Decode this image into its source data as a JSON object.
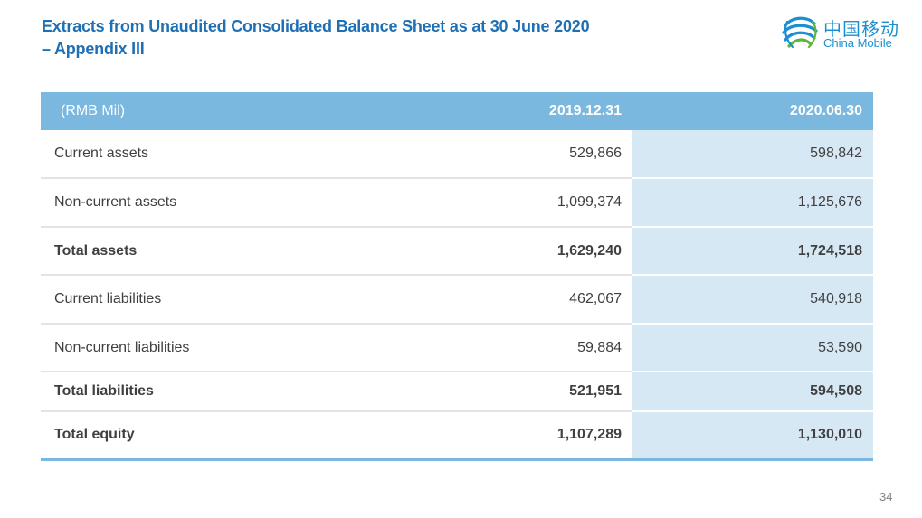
{
  "slide": {
    "title_line1": "Extracts from Unaudited Consolidated Balance Sheet as at 30 June 2020",
    "title_line2": "– Appendix III",
    "page_number": "34"
  },
  "logo": {
    "chinese_text": "中国移动",
    "english_text": "China Mobile",
    "icon": "china-mobile-swirl-icon",
    "color": "#1b8fd0"
  },
  "table": {
    "header": {
      "unit_label": "(RMB Mil)",
      "col1": "2019.12.31",
      "col2": "2020.06.30"
    },
    "rows": [
      {
        "label": "Current assets",
        "v2019": "529,866",
        "v2020": "598,842",
        "bold": false
      },
      {
        "label": "Non-current assets",
        "v2019": "1,099,374",
        "v2020": "1,125,676",
        "bold": false
      },
      {
        "label": "Total assets",
        "v2019": "1,629,240",
        "v2020": "1,724,518",
        "bold": true
      },
      {
        "label": "Current liabilities",
        "v2019": "462,067",
        "v2020": "540,918",
        "bold": false
      },
      {
        "label": "Non-current liabilities",
        "v2019": "59,884",
        "v2020": "53,590",
        "bold": false
      },
      {
        "label": "Total liabilities",
        "v2019": "521,951",
        "v2020": "594,508",
        "bold": true
      },
      {
        "label": "Total equity",
        "v2019": "1,107,289",
        "v2020": "1,130,010",
        "bold": true
      }
    ]
  },
  "colors": {
    "title": "#1f6fb5",
    "header_bg": "#7ab8df",
    "highlight_col": "#d7e8f5"
  }
}
